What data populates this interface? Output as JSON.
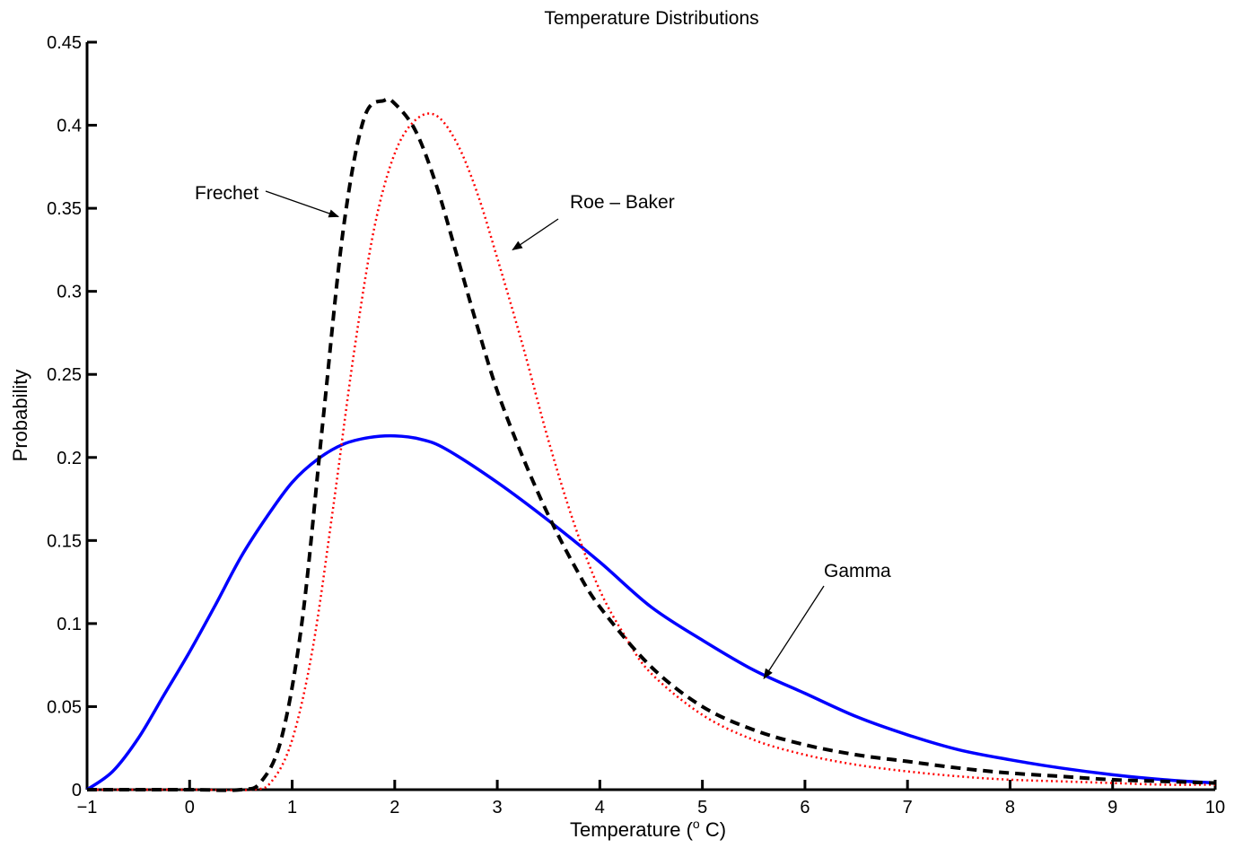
{
  "chart_data": {
    "type": "line",
    "title": "Temperature Distributions",
    "xlabel": "Temperature (",
    "xlabel_sup": "o",
    "xlabel_unit": " C)",
    "ylabel": "Probability",
    "xlim": [
      -1,
      10
    ],
    "ylim": [
      0,
      0.45
    ],
    "xticks": [
      -1,
      0,
      1,
      2,
      3,
      4,
      5,
      6,
      7,
      8,
      9,
      10
    ],
    "xtick_labels": [
      "−1",
      "0",
      "1",
      "2",
      "3",
      "4",
      "5",
      "6",
      "7",
      "8",
      "9",
      "10"
    ],
    "yticks": [
      0,
      0.05,
      0.1,
      0.15,
      0.2,
      0.25,
      0.3,
      0.35,
      0.4,
      0.45
    ],
    "ytick_labels": [
      "0",
      "0.05",
      "0.1",
      "0.15",
      "0.2",
      "0.25",
      "0.3",
      "0.35",
      "0.4",
      "0.45"
    ],
    "grid": false,
    "legend": "none",
    "series": [
      {
        "name": "Gamma",
        "color": "#0000ff",
        "style": "solid",
        "x": [
          -1,
          -0.75,
          -0.5,
          -0.25,
          0,
          0.25,
          0.5,
          0.75,
          1,
          1.25,
          1.5,
          1.75,
          2,
          2.25,
          2.5,
          3,
          3.5,
          4,
          4.5,
          5,
          5.5,
          6,
          6.5,
          7,
          7.5,
          8,
          8.5,
          9,
          9.5,
          10
        ],
        "values": [
          0,
          0.011,
          0.031,
          0.057,
          0.083,
          0.111,
          0.14,
          0.164,
          0.185,
          0.199,
          0.208,
          0.212,
          0.213,
          0.211,
          0.205,
          0.185,
          0.162,
          0.137,
          0.11,
          0.09,
          0.072,
          0.058,
          0.044,
          0.033,
          0.024,
          0.018,
          0.013,
          0.009,
          0.006,
          0.004
        ]
      },
      {
        "name": "Frechet",
        "color": "#000000",
        "style": "dashed",
        "x": [
          -1,
          0,
          0.5,
          0.7,
          0.9,
          1.1,
          1.3,
          1.5,
          1.7,
          1.9,
          2.0,
          2.2,
          2.4,
          2.6,
          2.8,
          3.0,
          3.25,
          3.5,
          3.75,
          4.0,
          4.5,
          5.0,
          5.5,
          6,
          6.5,
          7,
          7.5,
          8,
          8.5,
          9,
          9.5,
          10
        ],
        "values": [
          0,
          0,
          0,
          0.005,
          0.032,
          0.103,
          0.222,
          0.338,
          0.404,
          0.415,
          0.413,
          0.397,
          0.365,
          0.323,
          0.28,
          0.24,
          0.2,
          0.165,
          0.135,
          0.11,
          0.074,
          0.05,
          0.036,
          0.027,
          0.021,
          0.017,
          0.013,
          0.01,
          0.008,
          0.006,
          0.005,
          0.004
        ]
      },
      {
        "name": "Roe – Baker",
        "color": "#ff0000",
        "style": "dotted",
        "x": [
          -1,
          0,
          0.6,
          0.8,
          1.0,
          1.2,
          1.4,
          1.6,
          1.8,
          2.0,
          2.2,
          2.4,
          2.6,
          2.8,
          3.0,
          3.25,
          3.5,
          3.75,
          4.0,
          4.25,
          4.5,
          5.0,
          5.5,
          6,
          6.5,
          7,
          7.5,
          8,
          8.5,
          9,
          9.5,
          10
        ],
        "values": [
          0,
          0,
          0,
          0.005,
          0.03,
          0.085,
          0.17,
          0.262,
          0.338,
          0.383,
          0.403,
          0.406,
          0.39,
          0.36,
          0.32,
          0.267,
          0.21,
          0.16,
          0.12,
          0.092,
          0.07,
          0.045,
          0.03,
          0.021,
          0.015,
          0.011,
          0.008,
          0.006,
          0.005,
          0.004,
          0.003,
          0.003
        ]
      }
    ],
    "annotations": [
      {
        "text": "Frechet",
        "series": "Frechet",
        "arrow_x": 1.45,
        "arrow_y": 0.345
      },
      {
        "text": "Roe – Baker",
        "series": "Roe – Baker",
        "arrow_x": 3.15,
        "arrow_y": 0.325
      },
      {
        "text": "Gamma",
        "series": "Gamma",
        "arrow_x": 5.6,
        "arrow_y": 0.067
      }
    ]
  }
}
